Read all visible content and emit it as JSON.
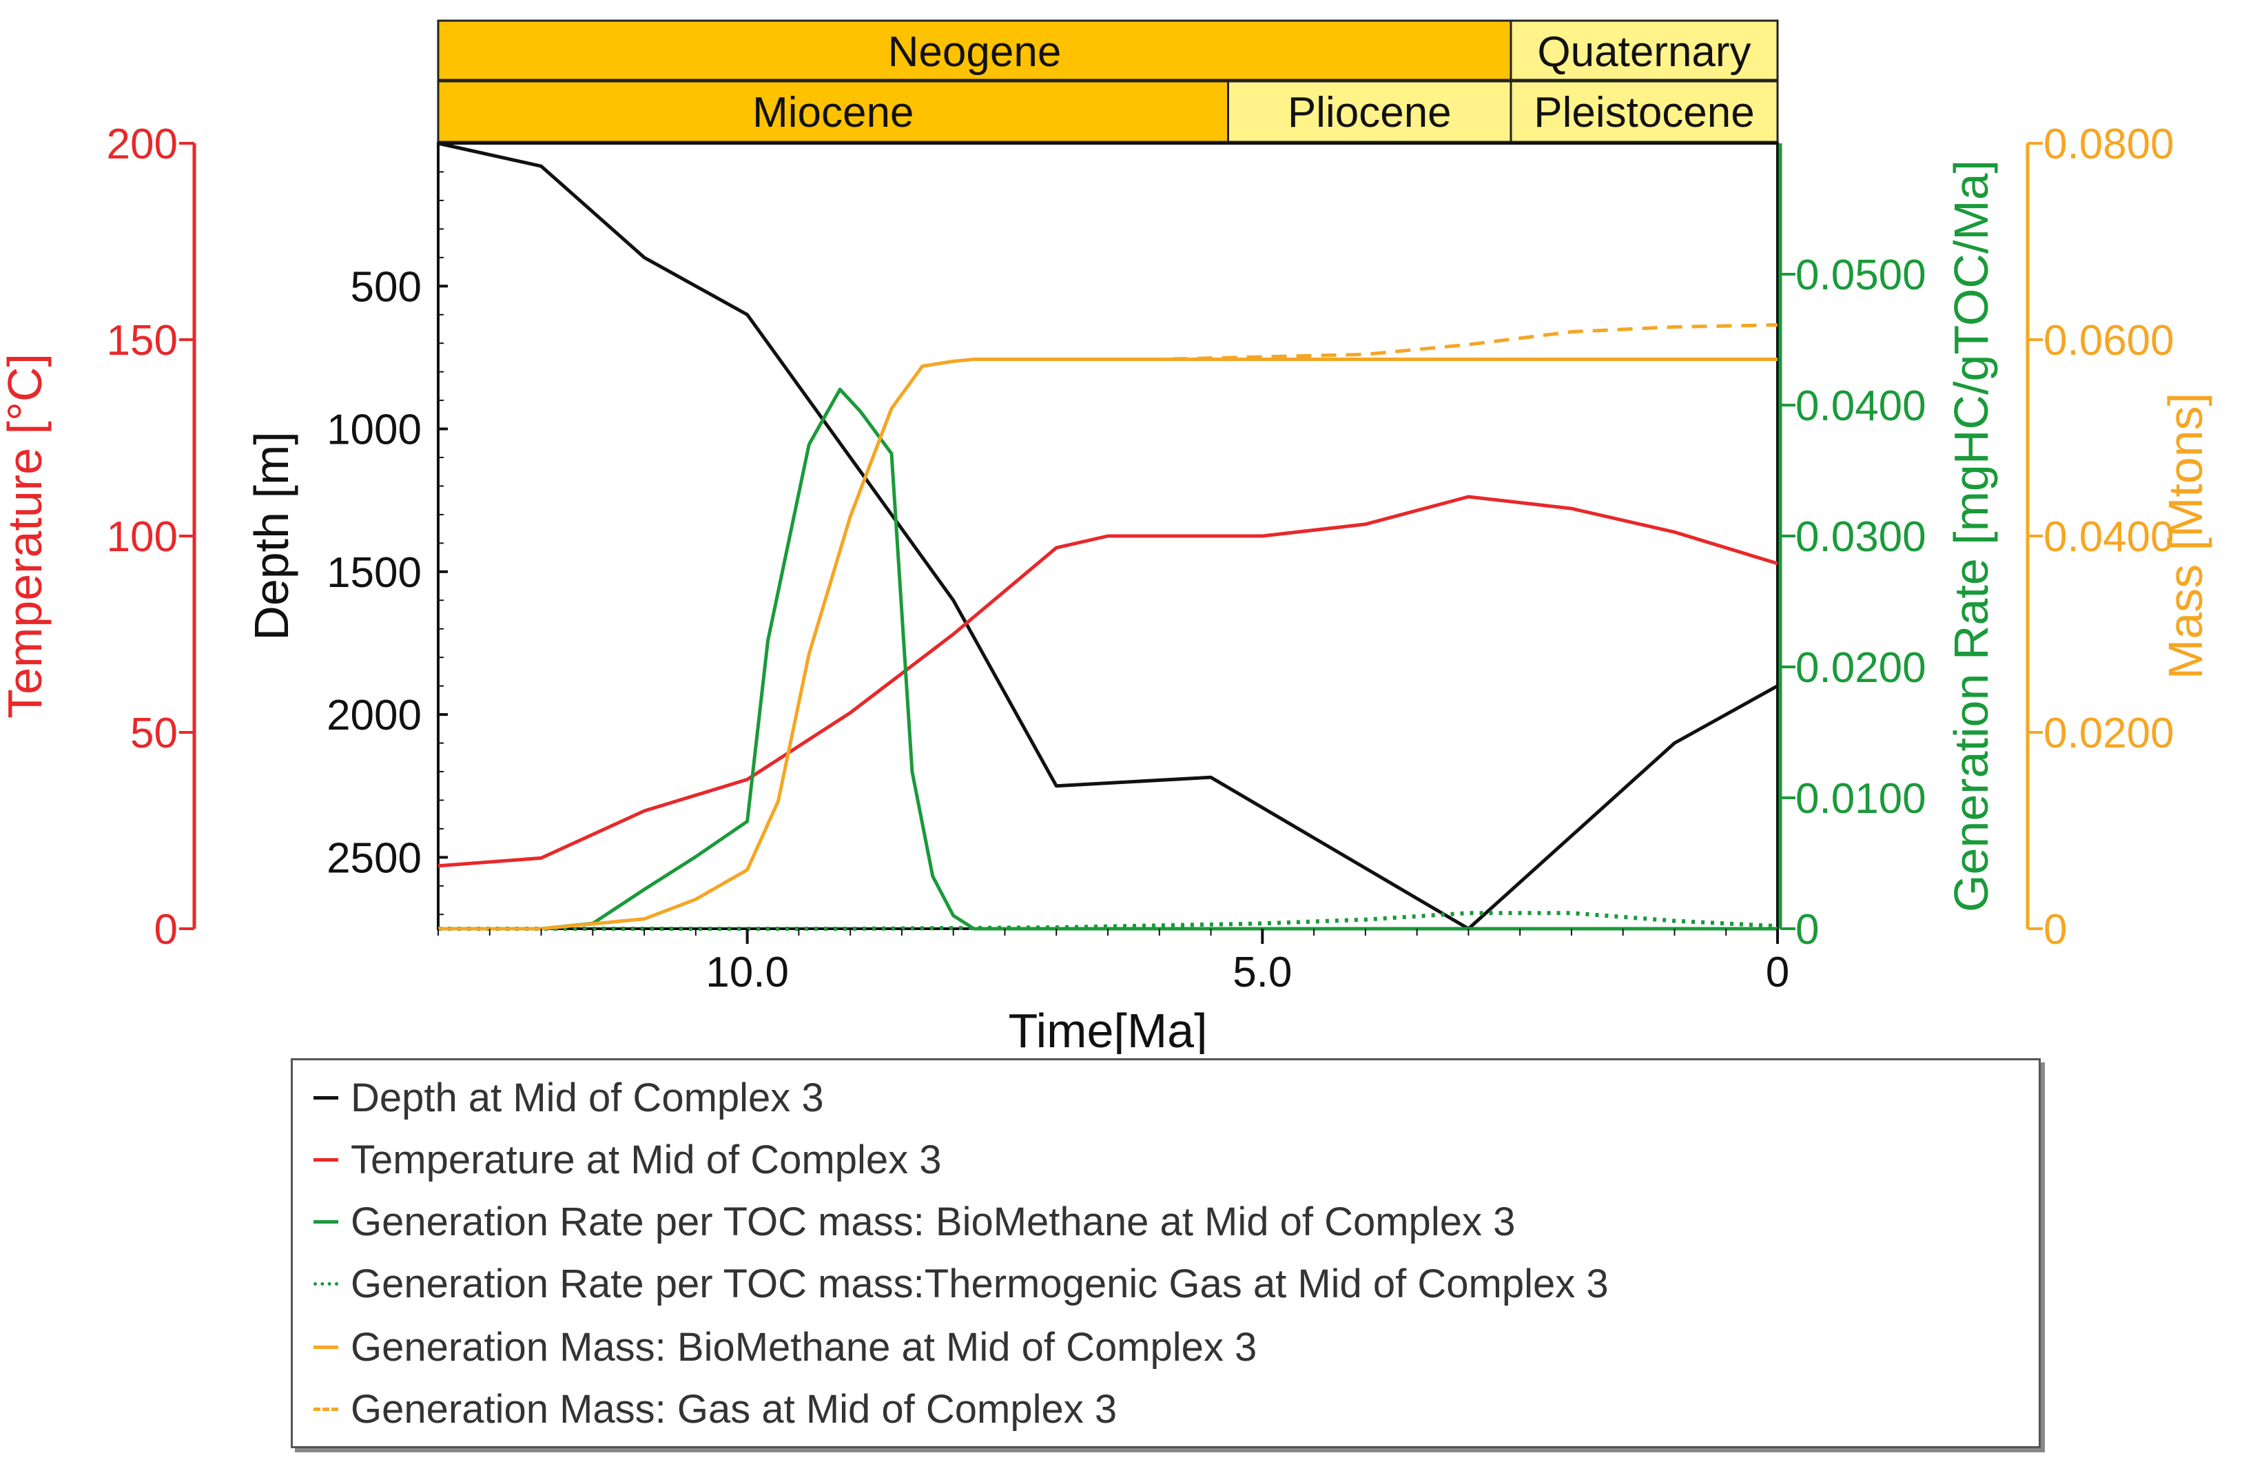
{
  "colors": {
    "depth": "#111111",
    "temperature": "#e8282a",
    "gen_rate": "#1a9a3a",
    "mass": "#f5a623",
    "period_fill": "#ffc200",
    "epoch_light": "#fff38a"
  },
  "chronostratigraphy": {
    "periods": [
      {
        "name": "Neogene",
        "from": 13,
        "to": 2.588
      },
      {
        "name": "Quaternary",
        "from": 2.588,
        "to": 0
      }
    ],
    "epochs": [
      {
        "name": "Miocene",
        "from": 13,
        "to": 5.333
      },
      {
        "name": "Pliocene",
        "from": 5.333,
        "to": 2.588
      },
      {
        "name": "Pleistocene",
        "from": 2.588,
        "to": 0
      }
    ]
  },
  "chart_data": {
    "type": "line",
    "xlabel": "Time[Ma]",
    "xlim": [
      13,
      0
    ],
    "x_ticks": [
      "10.0",
      "5.0",
      "0"
    ],
    "axes": {
      "temperature": {
        "label": "Temperature [°C]",
        "ylim": [
          0,
          200
        ],
        "ticks": [
          "0",
          "50",
          "100",
          "150",
          "200"
        ]
      },
      "depth": {
        "label": "Depth [m]",
        "ylim": [
          2750,
          0
        ],
        "ticks": [
          "500",
          "1000",
          "1500",
          "2000",
          "2500"
        ]
      },
      "gen_rate": {
        "label": "Generation Rate [mgHC/gTOC/Ma]",
        "ylim": [
          0,
          0.06
        ],
        "ticks": [
          "0",
          "0.0100",
          "0.0200",
          "0.0300",
          "0.0400",
          "0.0500"
        ]
      },
      "mass": {
        "label": "Mass [Mtons]",
        "ylim": [
          0,
          0.08
        ],
        "ticks": [
          "0",
          "0.0200",
          "0.0400",
          "0.0600",
          "0.0800"
        ]
      }
    },
    "series": [
      {
        "name": "Depth at Mid of Complex 3",
        "axis": "depth",
        "style": "solid",
        "x": [
          13,
          12,
          11,
          10,
          9,
          8,
          7,
          5.5,
          3,
          1,
          0
        ],
        "y": [
          0,
          80,
          400,
          600,
          1100,
          1600,
          2250,
          2220,
          2750,
          2100,
          1900
        ]
      },
      {
        "name": "Temperature at Mid of Complex 3",
        "axis": "temperature",
        "style": "solid",
        "x": [
          13,
          12,
          11,
          10,
          9,
          8,
          7,
          6.5,
          5,
          4,
          3,
          2,
          1,
          0
        ],
        "y": [
          16,
          18,
          30,
          38,
          55,
          75,
          97,
          100,
          100,
          103,
          110,
          107,
          101,
          93
        ]
      },
      {
        "name": "Generation Rate per TOC mass: BioMethane at Mid of Complex 3",
        "axis": "gen_rate",
        "style": "solid",
        "x": [
          13,
          12,
          11.5,
          11,
          10.5,
          10,
          9.8,
          9.4,
          9.1,
          8.9,
          8.6,
          8.4,
          8.2,
          8.0,
          7.8,
          7.5,
          0
        ],
        "y": [
          0,
          0,
          0.0004,
          0.003,
          0.0055,
          0.0082,
          0.022,
          0.037,
          0.0412,
          0.0395,
          0.0363,
          0.012,
          0.004,
          0.001,
          0,
          0,
          0
        ]
      },
      {
        "name": "Generation Rate per TOC mass:Thermogenic Gas at Mid of Complex 3",
        "axis": "gen_rate",
        "style": "dotted",
        "x": [
          13,
          9,
          7,
          5,
          4,
          3,
          2,
          1,
          0
        ],
        "y": [
          0,
          0,
          0.0001,
          0.0004,
          0.0007,
          0.0012,
          0.0012,
          0.0006,
          0.0002
        ]
      },
      {
        "name": "Generation Mass: BioMethane at Mid of Complex 3",
        "axis": "mass",
        "style": "solid",
        "x": [
          13,
          12,
          11,
          10.5,
          10,
          9.7,
          9.4,
          9.0,
          8.6,
          8.3,
          8.0,
          7.8,
          7.0,
          0
        ],
        "y": [
          0,
          0,
          0.001,
          0.003,
          0.006,
          0.013,
          0.028,
          0.042,
          0.053,
          0.0573,
          0.0578,
          0.058,
          0.058,
          0.058
        ]
      },
      {
        "name": "Generation Mass: Gas at Mid of Complex 3",
        "axis": "mass",
        "style": "dashed",
        "x": [
          7.8,
          6,
          4,
          3,
          2,
          1,
          0
        ],
        "y": [
          0.058,
          0.058,
          0.0585,
          0.0595,
          0.0608,
          0.0613,
          0.0615
        ]
      }
    ]
  }
}
